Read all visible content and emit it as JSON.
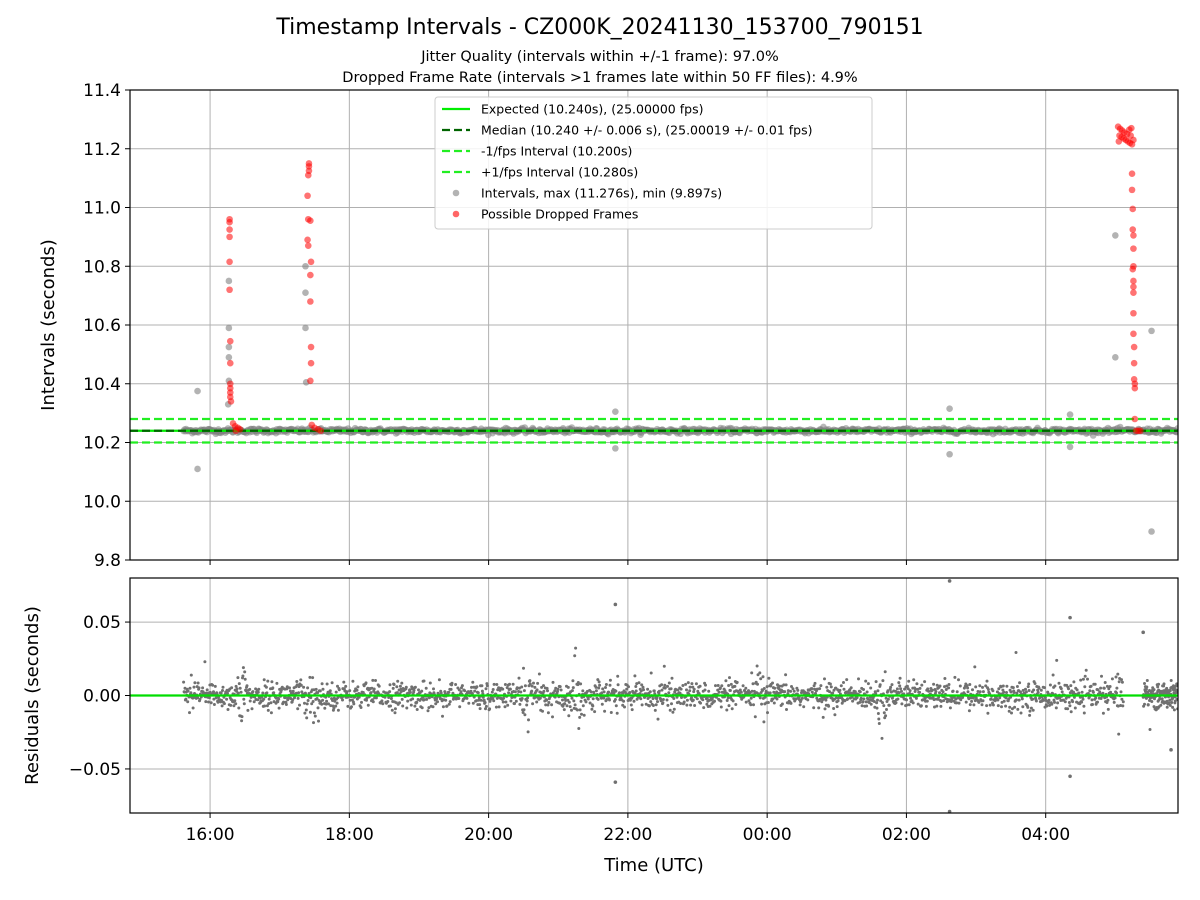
{
  "chart_data": {
    "title": "Timestamp Intervals - CZ000K_20241130_153700_790151",
    "subtitle_lines": [
      "Jitter Quality (intervals within +/-1 frame): 97.0%",
      "Dropped Frame Rate (intervals >1 frames late within 50 FF files): 4.9%"
    ],
    "xlabel": "Time (UTC)",
    "x_ticks": [
      "16:00",
      "18:00",
      "20:00",
      "22:00",
      "00:00",
      "02:00",
      "04:00"
    ],
    "x_tick_hours": [
      16,
      18,
      20,
      22,
      24,
      26,
      28
    ],
    "xlim_hours": [
      14.85,
      29.9
    ],
    "data_start_hour": 15.62,
    "data_end_hour": 29.9,
    "grid": true,
    "panels": [
      {
        "id": "intervals",
        "type": "scatter",
        "ylabel": "Intervals (seconds)",
        "ylim": [
          9.8,
          11.4
        ],
        "y_ticks": [
          "9.8",
          "10.0",
          "10.2",
          "10.4",
          "10.6",
          "10.8",
          "11.0",
          "11.2",
          "11.4"
        ],
        "y_tick_values": [
          9.8,
          10.0,
          10.2,
          10.4,
          10.6,
          10.8,
          11.0,
          11.2,
          11.4
        ],
        "legend_position": "upper center",
        "lines": [
          {
            "label": "Expected (10.240s), (25.00000 fps)",
            "y": 10.24,
            "color": "#00ee00",
            "style": "solid"
          },
          {
            "label": "Median (10.240 +/- 0.006 s), (25.00019 +/- 0.01 fps)",
            "y": 10.24,
            "color": "#006400",
            "style": "dashed"
          },
          {
            "label": "-1/fps Interval (10.200s)",
            "y": 10.2,
            "color": "#22ee22",
            "style": "dashed"
          },
          {
            "label": "+1/fps Interval (10.280s)",
            "y": 10.28,
            "color": "#22ee22",
            "style": "dashed"
          }
        ],
        "series": [
          {
            "label": "Intervals, max (11.276s), min (9.897s)",
            "color": "#808080",
            "baseline": 10.24,
            "outliers": [
              {
                "t": 15.82,
                "v": 10.375
              },
              {
                "t": 15.82,
                "v": 10.11
              },
              {
                "t": 16.27,
                "v": 10.75
              },
              {
                "t": 16.27,
                "v": 10.59
              },
              {
                "t": 16.27,
                "v": 10.525
              },
              {
                "t": 16.27,
                "v": 10.49
              },
              {
                "t": 16.27,
                "v": 10.41
              },
              {
                "t": 16.26,
                "v": 10.33
              },
              {
                "t": 17.37,
                "v": 10.8
              },
              {
                "t": 17.37,
                "v": 10.71
              },
              {
                "t": 17.37,
                "v": 10.59
              },
              {
                "t": 17.38,
                "v": 10.405
              },
              {
                "t": 21.82,
                "v": 10.305
              },
              {
                "t": 21.82,
                "v": 10.18
              },
              {
                "t": 26.62,
                "v": 10.315
              },
              {
                "t": 26.62,
                "v": 10.16
              },
              {
                "t": 28.35,
                "v": 10.295
              },
              {
                "t": 28.35,
                "v": 10.185
              },
              {
                "t": 29.0,
                "v": 10.905
              },
              {
                "t": 29.0,
                "v": 10.49
              },
              {
                "t": 29.52,
                "v": 10.58
              },
              {
                "t": 29.52,
                "v": 9.897
              }
            ]
          },
          {
            "label": "Possible Dropped Frames",
            "color": "#ff0000",
            "points": [
              {
                "t": 16.28,
                "v": 10.96
              },
              {
                "t": 16.28,
                "v": 10.95
              },
              {
                "t": 16.28,
                "v": 10.925
              },
              {
                "t": 16.28,
                "v": 10.9
              },
              {
                "t": 16.28,
                "v": 10.815
              },
              {
                "t": 16.28,
                "v": 10.72
              },
              {
                "t": 16.29,
                "v": 10.545
              },
              {
                "t": 16.29,
                "v": 10.47
              },
              {
                "t": 16.29,
                "v": 10.4
              },
              {
                "t": 16.29,
                "v": 10.385
              },
              {
                "t": 16.29,
                "v": 10.37
              },
              {
                "t": 16.29,
                "v": 10.355
              },
              {
                "t": 16.3,
                "v": 10.34
              },
              {
                "t": 16.33,
                "v": 10.265
              },
              {
                "t": 16.36,
                "v": 10.255
              },
              {
                "t": 16.4,
                "v": 10.25
              },
              {
                "t": 16.43,
                "v": 10.245
              },
              {
                "t": 16.37,
                "v": 10.24
              },
              {
                "t": 17.42,
                "v": 11.15
              },
              {
                "t": 17.42,
                "v": 11.14
              },
              {
                "t": 17.42,
                "v": 11.125
              },
              {
                "t": 17.41,
                "v": 11.11
              },
              {
                "t": 17.4,
                "v": 11.04
              },
              {
                "t": 17.41,
                "v": 10.96
              },
              {
                "t": 17.44,
                "v": 10.955
              },
              {
                "t": 17.4,
                "v": 10.89
              },
              {
                "t": 17.41,
                "v": 10.87
              },
              {
                "t": 17.45,
                "v": 10.815
              },
              {
                "t": 17.44,
                "v": 10.77
              },
              {
                "t": 17.44,
                "v": 10.68
              },
              {
                "t": 17.45,
                "v": 10.525
              },
              {
                "t": 17.45,
                "v": 10.47
              },
              {
                "t": 17.44,
                "v": 10.41
              },
              {
                "t": 17.46,
                "v": 10.26
              },
              {
                "t": 17.5,
                "v": 10.25
              },
              {
                "t": 17.55,
                "v": 10.245
              },
              {
                "t": 17.59,
                "v": 10.24
              },
              {
                "t": 29.04,
                "v": 11.275
              },
              {
                "t": 29.07,
                "v": 11.268
              },
              {
                "t": 29.1,
                "v": 11.262
              },
              {
                "t": 29.13,
                "v": 11.255
              },
              {
                "t": 29.17,
                "v": 11.25
              },
              {
                "t": 29.2,
                "v": 11.265
              },
              {
                "t": 29.23,
                "v": 11.27
              },
              {
                "t": 29.06,
                "v": 11.245
              },
              {
                "t": 29.09,
                "v": 11.24
              },
              {
                "t": 29.12,
                "v": 11.235
              },
              {
                "t": 29.15,
                "v": 11.23
              },
              {
                "t": 29.18,
                "v": 11.225
              },
              {
                "t": 29.21,
                "v": 11.22
              },
              {
                "t": 29.24,
                "v": 11.215
              },
              {
                "t": 29.05,
                "v": 11.225
              },
              {
                "t": 29.26,
                "v": 11.23
              },
              {
                "t": 29.22,
                "v": 11.245
              },
              {
                "t": 29.24,
                "v": 11.115
              },
              {
                "t": 29.24,
                "v": 11.06
              },
              {
                "t": 29.25,
                "v": 10.995
              },
              {
                "t": 29.25,
                "v": 10.925
              },
              {
                "t": 29.26,
                "v": 10.905
              },
              {
                "t": 29.26,
                "v": 10.86
              },
              {
                "t": 29.26,
                "v": 10.8
              },
              {
                "t": 29.25,
                "v": 10.79
              },
              {
                "t": 29.26,
                "v": 10.75
              },
              {
                "t": 29.26,
                "v": 10.73
              },
              {
                "t": 29.26,
                "v": 10.71
              },
              {
                "t": 29.26,
                "v": 10.64
              },
              {
                "t": 29.26,
                "v": 10.57
              },
              {
                "t": 29.27,
                "v": 10.525
              },
              {
                "t": 29.27,
                "v": 10.47
              },
              {
                "t": 29.27,
                "v": 10.415
              },
              {
                "t": 29.28,
                "v": 10.4
              },
              {
                "t": 29.28,
                "v": 10.385
              },
              {
                "t": 29.28,
                "v": 10.28
              },
              {
                "t": 29.3,
                "v": 10.24
              },
              {
                "t": 29.33,
                "v": 10.24
              },
              {
                "t": 29.36,
                "v": 10.24
              }
            ]
          }
        ]
      },
      {
        "id": "residuals",
        "type": "scatter",
        "ylabel": "Residuals (seconds)",
        "ylim": [
          -0.08,
          0.08
        ],
        "y_ticks": [
          "−0.05",
          "0.00",
          "0.05"
        ],
        "y_tick_values": [
          -0.05,
          0.0,
          0.05
        ],
        "zero_line_color": "#00dd00",
        "point_color": "#707070",
        "outliers": [
          {
            "t": 21.82,
            "v": 0.062
          },
          {
            "t": 21.82,
            "v": -0.059
          },
          {
            "t": 26.62,
            "v": 0.078
          },
          {
            "t": 26.62,
            "v": -0.079
          },
          {
            "t": 28.35,
            "v": 0.053
          },
          {
            "t": 28.35,
            "v": -0.055
          },
          {
            "t": 29.4,
            "v": 0.043
          },
          {
            "t": 29.8,
            "v": -0.037
          }
        ]
      }
    ]
  }
}
